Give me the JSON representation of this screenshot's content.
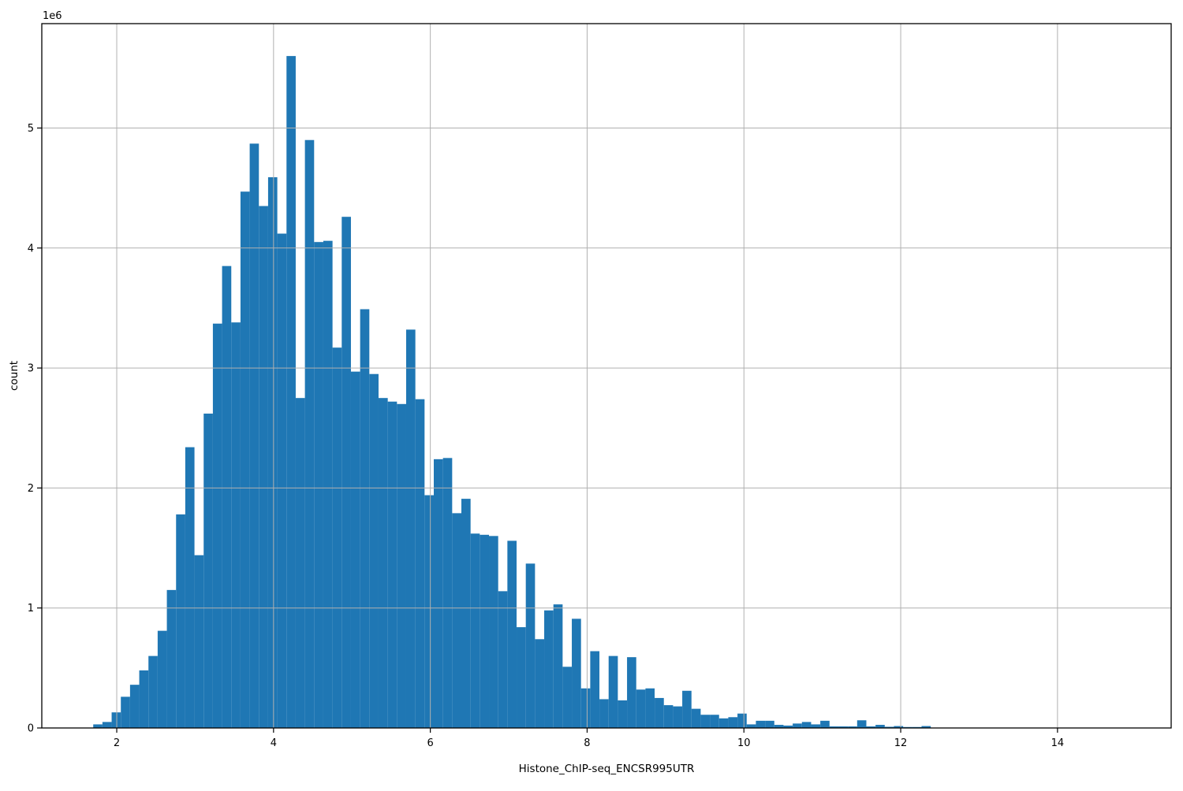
{
  "chart_data": {
    "type": "bar",
    "subtype": "histogram",
    "title": "",
    "xlabel": "Histone_ChIP-seq_ENCSR995UTR",
    "ylabel": "count",
    "offset_text": "1e6",
    "bar_color": "#1f77b4",
    "grid": true,
    "grid_color": "#b0b0b0",
    "x_ticks": [
      2,
      4,
      6,
      8,
      10,
      12,
      14
    ],
    "y_ticks": [
      0,
      1,
      2,
      3,
      4,
      5
    ],
    "y_unit_multiplier": 1000000,
    "xlim": [
      1.044,
      15.45
    ],
    "ylim_millions": [
      0,
      5.87
    ],
    "bin_start": 1.7,
    "bin_width": 0.1174,
    "counts_millions": [
      0.03,
      0.05,
      0.13,
      0.26,
      0.36,
      0.48,
      0.6,
      0.81,
      1.15,
      1.78,
      2.34,
      1.44,
      2.62,
      3.37,
      3.85,
      3.38,
      4.47,
      4.87,
      4.35,
      4.59,
      4.12,
      5.6,
      2.75,
      4.9,
      4.05,
      4.06,
      3.17,
      4.26,
      2.97,
      3.49,
      2.95,
      2.75,
      2.72,
      2.7,
      3.32,
      2.74,
      1.94,
      2.24,
      2.25,
      1.79,
      1.91,
      1.62,
      1.61,
      1.6,
      1.14,
      1.56,
      0.84,
      1.37,
      0.74,
      0.98,
      1.03,
      0.51,
      0.91,
      0.33,
      0.64,
      0.24,
      0.6,
      0.23,
      0.59,
      0.32,
      0.33,
      0.25,
      0.19,
      0.18,
      0.31,
      0.16,
      0.11,
      0.11,
      0.08,
      0.09,
      0.12,
      0.03,
      0.06,
      0.06,
      0.026,
      0.02,
      0.037,
      0.05,
      0.03,
      0.06,
      0.013,
      0.013,
      0.013,
      0.064,
      0.013,
      0.026,
      0.01,
      0.016,
      0.008,
      0.008,
      0.016
    ]
  }
}
